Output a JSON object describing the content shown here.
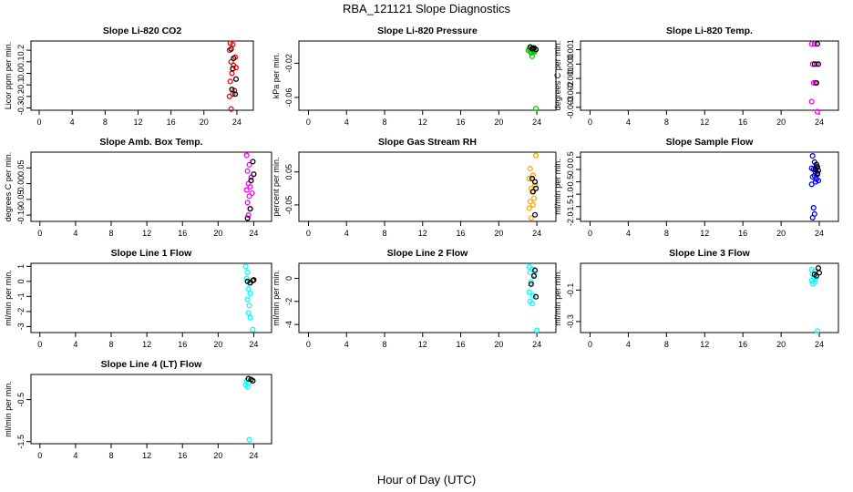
{
  "figure": {
    "title": "RBA_121121  Slope Diagnostics",
    "xlabel": "Hour of Day (UTC)"
  },
  "colors": {
    "red": "#ff0000",
    "black": "#000000",
    "green": "#00cc00",
    "magenta": "#ff00ff",
    "orange": "#ffa500",
    "blue": "#0000ff",
    "cyan": "#00ffff"
  },
  "chart_data": [
    {
      "type": "scatter",
      "title": "Slope Li-820 CO2",
      "ylabel": "Licor ppm per min.",
      "xlim": [
        -1,
        26
      ],
      "xticks": [
        "0",
        "4",
        "8",
        "12",
        "16",
        "20",
        "24"
      ],
      "xtick_values": [
        0,
        4,
        8,
        12,
        16,
        20,
        24
      ],
      "ylim": [
        -0.32,
        0.28
      ],
      "yticks": [
        "-0.3",
        "-0.2",
        "-0.1",
        "0.0",
        "0.1",
        "0.2"
      ],
      "ytick_values": [
        -0.3,
        -0.2,
        -0.1,
        0.0,
        0.1,
        0.2
      ],
      "series": [
        {
          "name": "red",
          "color": "#ff0000",
          "x": [
            23.2,
            23.5,
            23.8,
            23.1,
            23.6,
            23.3,
            23.9,
            23.4,
            23.2,
            23.7,
            23.5,
            23.1,
            23.3
          ],
          "y": [
            0.26,
            0.25,
            0.14,
            0.2,
            0.07,
            0.1,
            0.05,
            0.0,
            -0.07,
            -0.15,
            -0.18,
            -0.2,
            -0.31
          ]
        },
        {
          "name": "black",
          "color": "#000000",
          "x": [
            23.3,
            23.6,
            23.5,
            23.9,
            23.4,
            23.8
          ],
          "y": [
            0.21,
            0.13,
            0.04,
            -0.05,
            -0.14,
            -0.18
          ]
        }
      ]
    },
    {
      "type": "scatter",
      "title": "Slope Li-820 Pressure",
      "ylabel": "kPa per min.",
      "xlim": [
        -1,
        26
      ],
      "xticks": [
        "0",
        "4",
        "8",
        "12",
        "16",
        "20",
        "24"
      ],
      "xtick_values": [
        0,
        4,
        8,
        12,
        16,
        20,
        24
      ],
      "ylim": [
        -0.075,
        0.006
      ],
      "yticks": [
        "-0.02",
        "-0.06"
      ],
      "ytick_values": [
        -0.02,
        -0.06
      ],
      "series": [
        {
          "name": "green",
          "color": "#00cc00",
          "x": [
            23.1,
            23.3,
            23.5,
            23.7,
            23.2,
            23.4,
            23.6,
            23.8,
            23.5,
            23.9
          ],
          "y": [
            -0.005,
            -0.006,
            -0.004,
            -0.007,
            -0.003,
            -0.008,
            -0.005,
            -0.006,
            -0.012,
            -0.073
          ]
        },
        {
          "name": "black",
          "color": "#000000",
          "x": [
            23.3,
            23.5,
            23.7,
            23.9,
            23.6
          ],
          "y": [
            -0.001,
            -0.003,
            -0.002,
            -0.004,
            -0.003
          ]
        }
      ]
    },
    {
      "type": "scatter",
      "title": "Slope Li-820 Temp.",
      "ylabel": "degrees C per min.",
      "xlim": [
        -1,
        26
      ],
      "xticks": [
        "0",
        "4",
        "8",
        "12",
        "16",
        "20",
        "24"
      ],
      "xtick_values": [
        0,
        4,
        8,
        12,
        16,
        20,
        24
      ],
      "ylim": [
        -0.0032,
        0.0016
      ],
      "yticks": [
        "-0.003",
        "-0.002",
        "-0.001",
        "0.000",
        "0.001"
      ],
      "ytick_values": [
        -0.003,
        -0.002,
        -0.001,
        0.0,
        0.001
      ],
      "series": [
        {
          "name": "magenta",
          "color": "#ff00ff",
          "x": [
            23.2,
            23.5,
            23.3,
            23.7,
            23.4,
            23.6,
            23.2,
            23.8
          ],
          "y": [
            0.0014,
            0.0014,
            0.0,
            0.0,
            -0.0013,
            -0.0013,
            -0.0026,
            -0.0033
          ]
        },
        {
          "name": "black",
          "color": "#000000",
          "x": [
            23.8,
            23.5,
            23.9,
            23.7
          ],
          "y": [
            0.0014,
            0.0,
            0.0,
            -0.0013
          ]
        }
      ]
    },
    {
      "type": "scatter",
      "title": "Slope Amb. Box Temp.",
      "ylabel": "degrees C per min.",
      "xlim": [
        -1,
        26
      ],
      "xticks": [
        "0",
        "4",
        "8",
        "12",
        "16",
        "20",
        "24"
      ],
      "xtick_values": [
        0,
        4,
        8,
        12,
        16,
        20,
        24
      ],
      "ylim": [
        -0.12,
        0.1
      ],
      "yticks": [
        "-0.10",
        "-0.05",
        "0.00",
        "0.05"
      ],
      "ytick_values": [
        -0.1,
        -0.05,
        0.0,
        0.05
      ],
      "series": [
        {
          "name": "magenta",
          "color": "#ff00ff",
          "x": [
            23.2,
            23.5,
            23.3,
            23.7,
            23.4,
            23.6,
            23.2,
            23.8,
            23.5,
            23.3,
            23.6,
            23.4
          ],
          "y": [
            0.09,
            0.06,
            0.04,
            0.02,
            0.0,
            -0.01,
            -0.02,
            -0.03,
            -0.04,
            -0.06,
            -0.08,
            -0.1
          ]
        },
        {
          "name": "black",
          "color": "#000000",
          "x": [
            23.9,
            24.0,
            23.7,
            23.6,
            23.3
          ],
          "y": [
            0.07,
            0.03,
            0.01,
            -0.08,
            -0.11
          ]
        }
      ]
    },
    {
      "type": "scatter",
      "title": "Slope Gas Stream RH",
      "ylabel": "percent per min.",
      "xlim": [
        -1,
        26
      ],
      "xticks": [
        "0",
        "4",
        "8",
        "12",
        "16",
        "20",
        "24"
      ],
      "xtick_values": [
        0,
        4,
        8,
        12,
        16,
        20,
        24
      ],
      "ylim": [
        -0.1,
        0.11
      ],
      "yticks": [
        "-0.05",
        "0.05"
      ],
      "ytick_values": [
        -0.05,
        0.05
      ],
      "series": [
        {
          "name": "orange",
          "color": "#ffa500",
          "x": [
            23.9,
            23.3,
            23.6,
            23.2,
            23.8,
            23.4,
            23.5,
            23.7,
            23.3,
            23.6,
            23.2,
            23.4
          ],
          "y": [
            0.1,
            0.06,
            0.04,
            0.03,
            0.01,
            0.0,
            -0.01,
            -0.03,
            -0.04,
            -0.05,
            -0.06,
            -0.09
          ]
        },
        {
          "name": "black",
          "color": "#000000",
          "x": [
            23.5,
            23.8,
            23.9,
            23.6,
            23.8
          ],
          "y": [
            0.03,
            0.02,
            0.0,
            -0.01,
            -0.08
          ]
        }
      ]
    },
    {
      "type": "scatter",
      "title": "Slope Sample Flow",
      "ylabel": "ml/min per min.",
      "xlim": [
        -1,
        26
      ],
      "xticks": [
        "0",
        "4",
        "8",
        "12",
        "16",
        "20",
        "24"
      ],
      "xtick_values": [
        0,
        4,
        8,
        12,
        16,
        20,
        24
      ],
      "ylim": [
        -2.1,
        0.7
      ],
      "yticks": [
        "-2.0",
        "-1.5",
        "-1.0",
        "-0.5",
        "0.0",
        "0.5"
      ],
      "ytick_values": [
        -2.0,
        -1.5,
        -1.0,
        -0.5,
        0.0,
        0.5
      ],
      "series": [
        {
          "name": "blue",
          "color": "#0000ff",
          "x": [
            23.3,
            23.5,
            23.7,
            23.2,
            23.4,
            23.6,
            23.8,
            23.5,
            23.3,
            23.7,
            23.9,
            23.6,
            23.2,
            23.4,
            23.5,
            23.3
          ],
          "y": [
            0.55,
            0.3,
            0.1,
            0.05,
            0.0,
            -0.1,
            -0.2,
            -0.25,
            -0.3,
            -0.4,
            -0.45,
            -0.5,
            -0.6,
            -1.55,
            -1.8,
            -1.95
          ]
        },
        {
          "name": "black",
          "color": "#000000",
          "x": [
            23.7,
            23.8,
            23.6,
            23.9,
            23.8
          ],
          "y": [
            0.2,
            0.1,
            0.0,
            -0.05,
            -0.15
          ]
        }
      ]
    },
    {
      "type": "scatter",
      "title": "Slope Line 1 Flow",
      "ylabel": "ml/min per min.",
      "xlim": [
        -1,
        26
      ],
      "xticks": [
        "0",
        "4",
        "8",
        "12",
        "16",
        "20",
        "24"
      ],
      "xtick_values": [
        0,
        4,
        8,
        12,
        16,
        20,
        24
      ],
      "ylim": [
        -3.4,
        1.2
      ],
      "yticks": [
        "-3",
        "-2",
        "-1",
        "0",
        "1"
      ],
      "ytick_values": [
        -3,
        -2,
        -1,
        0,
        1
      ],
      "series": [
        {
          "name": "cyan",
          "color": "#00ffff",
          "x": [
            23.1,
            23.3,
            23.2,
            23.5,
            23.4,
            23.6,
            23.3,
            23.5,
            23.4,
            23.6,
            23.9
          ],
          "y": [
            1.0,
            0.6,
            0.2,
            -0.1,
            -0.5,
            -0.8,
            -1.2,
            -1.6,
            -2.1,
            -2.4,
            -3.2
          ]
        },
        {
          "name": "black",
          "color": "#000000",
          "x": [
            23.3,
            23.6,
            23.9,
            24.0
          ],
          "y": [
            0.0,
            -0.1,
            0.05,
            0.1
          ]
        }
      ]
    },
    {
      "type": "scatter",
      "title": "Slope Line 2 Flow",
      "ylabel": "ml/min per min.",
      "xlim": [
        -1,
        26
      ],
      "xticks": [
        "0",
        "4",
        "8",
        "12",
        "16",
        "20",
        "24"
      ],
      "xtick_values": [
        0,
        4,
        8,
        12,
        16,
        20,
        24
      ],
      "ylim": [
        -4.7,
        1.3
      ],
      "yticks": [
        "-4",
        "-2",
        "0"
      ],
      "ytick_values": [
        -4,
        -2,
        0
      ],
      "series": [
        {
          "name": "cyan",
          "color": "#00ffff",
          "x": [
            23.2,
            23.5,
            23.3,
            23.7,
            23.4,
            23.2,
            23.6,
            23.3,
            23.5,
            24.0
          ],
          "y": [
            1.0,
            0.8,
            0.5,
            0.3,
            -0.3,
            -1.2,
            -1.5,
            -2.0,
            -2.2,
            -4.5
          ]
        },
        {
          "name": "black",
          "color": "#000000",
          "x": [
            23.8,
            23.7,
            23.4,
            23.9
          ],
          "y": [
            0.7,
            0.2,
            -0.5,
            -1.6
          ]
        }
      ]
    },
    {
      "type": "scatter",
      "title": "Slope Line 3 Flow",
      "ylabel": "ml/min per min.",
      "xlim": [
        -1,
        26
      ],
      "xticks": [
        "0",
        "4",
        "8",
        "12",
        "16",
        "20",
        "24"
      ],
      "xtick_values": [
        0,
        4,
        8,
        12,
        16,
        20,
        24
      ],
      "ylim": [
        -0.37,
        0.07
      ],
      "yticks": [
        "-0.3",
        "-0.1"
      ],
      "ytick_values": [
        -0.3,
        -0.1
      ],
      "series": [
        {
          "name": "cyan",
          "color": "#00ffff",
          "x": [
            23.2,
            23.5,
            23.3,
            23.7,
            23.4,
            23.6,
            23.2,
            23.5,
            23.3,
            23.8
          ],
          "y": [
            0.03,
            0.02,
            0.0,
            -0.01,
            -0.02,
            -0.03,
            -0.04,
            -0.05,
            -0.06,
            -0.36
          ]
        },
        {
          "name": "black",
          "color": "#000000",
          "x": [
            23.9,
            23.5,
            24.0,
            23.7
          ],
          "y": [
            0.04,
            0.0,
            0.01,
            -0.01
          ]
        }
      ]
    },
    {
      "type": "scatter",
      "title": "Slope Line 4 (LT) Flow",
      "ylabel": "ml/min per min.",
      "xlim": [
        -1,
        26
      ],
      "xticks": [
        "0",
        "4",
        "8",
        "12",
        "16",
        "20",
        "24"
      ],
      "xtick_values": [
        0,
        4,
        8,
        12,
        16,
        20,
        24
      ],
      "ylim": [
        -1.55,
        0.1
      ],
      "yticks": [
        "-0.5",
        "-1.5"
      ],
      "ytick_values": [
        -0.5,
        -1.5
      ],
      "series": [
        {
          "name": "cyan",
          "color": "#00ffff",
          "x": [
            23.2,
            23.4,
            23.1,
            23.3,
            23.5
          ],
          "y": [
            -0.05,
            -0.1,
            -0.15,
            -0.2,
            -1.45
          ]
        },
        {
          "name": "black",
          "color": "#000000",
          "x": [
            23.4,
            23.7,
            23.9
          ],
          "y": [
            0.0,
            -0.02,
            -0.05
          ]
        }
      ]
    }
  ]
}
